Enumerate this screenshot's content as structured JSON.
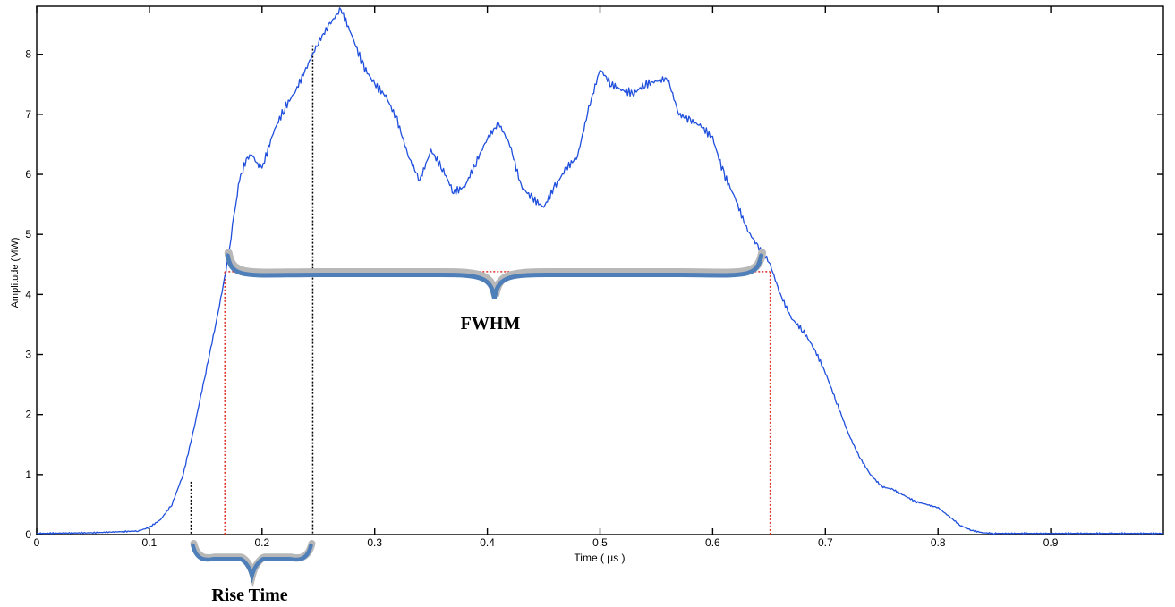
{
  "chart_data": {
    "type": "line",
    "title": "",
    "xlabel": "Time ( μs )",
    "ylabel": "Amplitude (MW)",
    "xlim": [
      0,
      1.0
    ],
    "ylim": [
      0,
      8.8
    ],
    "grid": false,
    "legend": "none",
    "x_ticks": [
      0,
      0.1,
      0.2,
      0.3,
      0.4,
      0.5,
      0.6,
      0.7,
      0.8,
      0.9
    ],
    "x_tick_labels": [
      "0",
      "0.1",
      "0.2",
      "0.3",
      "0.4",
      "0.5",
      "0.6",
      "0.7",
      "0.8",
      "0.9"
    ],
    "y_ticks": [
      0,
      1,
      2,
      3,
      4,
      5,
      6,
      7,
      8
    ],
    "y_tick_labels": [
      "0",
      "1",
      "2",
      "3",
      "4",
      "5",
      "6",
      "7",
      "8"
    ],
    "series": [
      {
        "color": "#1f4fdc",
        "x": [
          0,
          0.05,
          0.09,
          0.1,
          0.11,
          0.12,
          0.13,
          0.14,
          0.15,
          0.16,
          0.17,
          0.175,
          0.18,
          0.185,
          0.19,
          0.195,
          0.2,
          0.21,
          0.22,
          0.23,
          0.24,
          0.25,
          0.26,
          0.27,
          0.28,
          0.29,
          0.3,
          0.31,
          0.32,
          0.33,
          0.34,
          0.35,
          0.36,
          0.37,
          0.38,
          0.39,
          0.4,
          0.41,
          0.42,
          0.43,
          0.44,
          0.45,
          0.46,
          0.47,
          0.48,
          0.49,
          0.5,
          0.51,
          0.52,
          0.53,
          0.54,
          0.55,
          0.56,
          0.57,
          0.58,
          0.59,
          0.6,
          0.61,
          0.62,
          0.63,
          0.64,
          0.65,
          0.66,
          0.67,
          0.68,
          0.69,
          0.7,
          0.71,
          0.72,
          0.73,
          0.74,
          0.75,
          0.76,
          0.77,
          0.78,
          0.79,
          0.8,
          0.81,
          0.82,
          0.83,
          0.84,
          0.85,
          0.9,
          0.95,
          1.0
        ],
        "y": [
          0.02,
          0.03,
          0.06,
          0.12,
          0.25,
          0.5,
          1.0,
          1.8,
          2.7,
          3.6,
          4.6,
          5.3,
          5.9,
          6.2,
          6.35,
          6.2,
          6.1,
          6.7,
          7.1,
          7.4,
          7.8,
          8.2,
          8.5,
          8.75,
          8.3,
          7.8,
          7.5,
          7.3,
          6.9,
          6.3,
          5.9,
          6.4,
          6.1,
          5.7,
          5.8,
          6.2,
          6.6,
          6.85,
          6.5,
          5.8,
          5.6,
          5.45,
          5.8,
          6.1,
          6.3,
          7.1,
          7.75,
          7.5,
          7.4,
          7.35,
          7.5,
          7.55,
          7.6,
          7.0,
          6.9,
          6.8,
          6.6,
          6.0,
          5.6,
          5.1,
          4.8,
          4.55,
          4.0,
          3.6,
          3.4,
          3.1,
          2.7,
          2.2,
          1.7,
          1.3,
          1.0,
          0.8,
          0.75,
          0.65,
          0.55,
          0.5,
          0.45,
          0.3,
          0.15,
          0.07,
          0.03,
          0.02,
          0.02,
          0.02,
          0.02
        ]
      }
    ],
    "annotations": {
      "fwhm_label": "FWHM",
      "rise_time_label": "Rise Time",
      "half_max_level": 4.38,
      "fwhm_start": 0.167,
      "fwhm_end": 0.651,
      "rise_start": 0.137,
      "rise_end": 0.245,
      "rise_start_level": 0.88,
      "rise_end_level": 8.15,
      "marker_color_red": "#e0322a",
      "marker_color_black": "#000000",
      "brace_color": "#4f7fb8",
      "brace_shadow_color": "#b8b8b8"
    }
  }
}
